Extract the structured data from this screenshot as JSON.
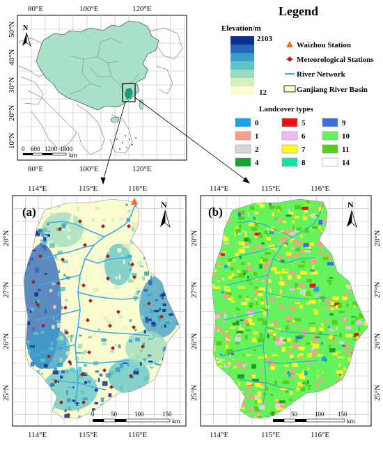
{
  "overview_map": {
    "top_ticks": [
      "80°E",
      "100°E",
      "120°E"
    ],
    "bottom_ticks": [
      "80°E",
      "100°E",
      "120°E"
    ],
    "left_ticks": [
      "50°N",
      "40°N",
      "30°N",
      "20°N",
      "10°N"
    ],
    "north": "N",
    "scale_labels": [
      "0",
      "600",
      "1200",
      "1800"
    ],
    "scale_unit": "km",
    "colors": {
      "china": "#a8e0c8",
      "border": "#555555",
      "inset_box": "#000000"
    }
  },
  "legend": {
    "title": "Legend",
    "elevation": {
      "title": "Elevation/m",
      "max": "2103",
      "min": "12",
      "ramp": [
        "#0d2f8f",
        "#2a64b8",
        "#3a9cc8",
        "#5ec4c8",
        "#9adcc0",
        "#d6efc0",
        "#fbfbd0"
      ]
    },
    "symbols": [
      {
        "icon": "triangle-icon",
        "color": "#ff6a1a",
        "label": "Waizhou Station"
      },
      {
        "icon": "diamond-icon",
        "color": "#a81e1e",
        "label": "Meteorological Stations"
      },
      {
        "icon": "line-icon",
        "color": "#3aaaf0",
        "label": "River Network"
      },
      {
        "icon": "box-icon",
        "color": "#fff8c8",
        "label": "Ganjiang River Basin"
      }
    ],
    "landcover": {
      "title": "Landcover types",
      "items": [
        {
          "code": "0",
          "color": "#1aa3e8"
        },
        {
          "code": "5",
          "color": "#ee1111"
        },
        {
          "code": "9",
          "color": "#3c6fd8"
        },
        {
          "code": "1",
          "color": "#f5a088"
        },
        {
          "code": "6",
          "color": "#f2b6f0"
        },
        {
          "code": "10",
          "color": "#66f25c"
        },
        {
          "code": "2",
          "color": "#d6d6d6"
        },
        {
          "code": "7",
          "color": "#fbf82a"
        },
        {
          "code": "11",
          "color": "#55d018"
        },
        {
          "code": "4",
          "color": "#16a22e"
        },
        {
          "code": "8",
          "color": "#18dfaa"
        },
        {
          "code": "14",
          "color": "#ffffff"
        }
      ]
    }
  },
  "panel_a": {
    "label": "(a)",
    "top_ticks": [
      "114°E",
      "115°E",
      "116°E"
    ],
    "bottom_ticks": [
      "114°E",
      "115°E",
      "116°E"
    ],
    "left_ticks": [
      "28°N",
      "27°N",
      "26°N",
      "25°N"
    ],
    "north": "N",
    "scale_labels": [
      "0",
      "50",
      "100",
      "150"
    ],
    "scale_unit": "km"
  },
  "panel_b": {
    "label": "(b)",
    "top_ticks": [
      "114°E",
      "115°E",
      "116°E"
    ],
    "bottom_ticks": [
      "114°E",
      "115°E",
      "116°E"
    ],
    "left_ticks": [
      "28°N",
      "27°N",
      "26°N",
      "25°N"
    ],
    "north": "N",
    "scale_labels": [
      "0",
      "50",
      "100",
      "150"
    ],
    "scale_unit": "km"
  }
}
